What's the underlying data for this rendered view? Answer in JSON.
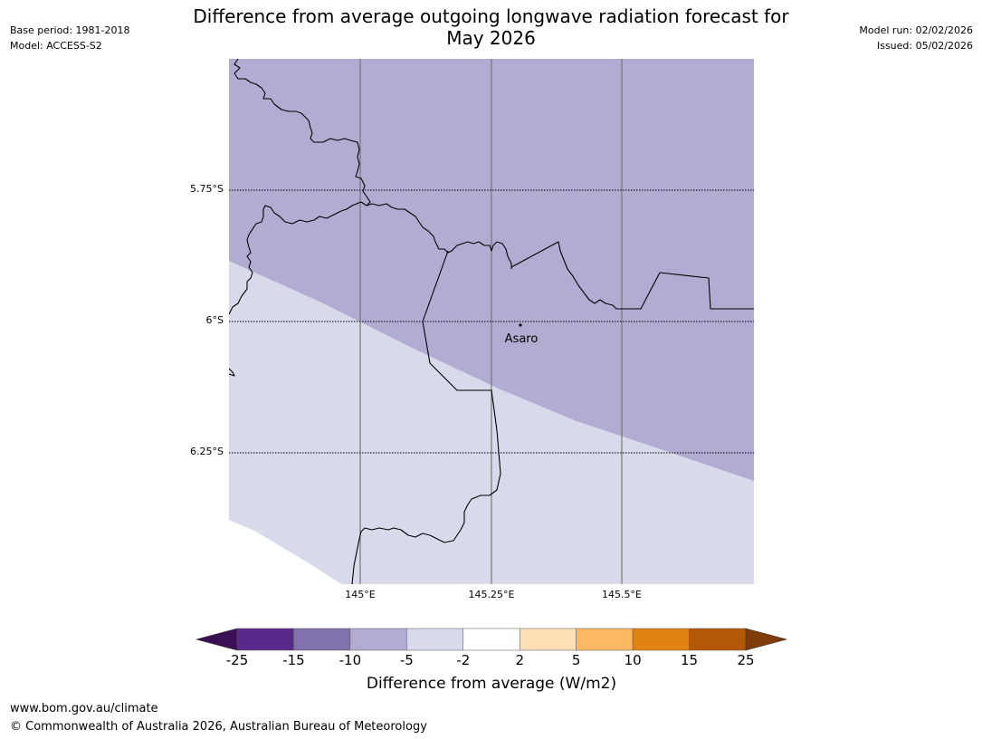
{
  "header": {
    "title_line1": "Difference from average outgoing longwave radiation forecast for",
    "title_line2": "May 2026",
    "base_period": "Base period: 1981-2018",
    "model": "Model: ACCESS-S2",
    "model_run": "Model run: 02/02/2026",
    "issued": "Issued: 05/02/2026"
  },
  "map": {
    "latitude_labels": [
      "5.75°S",
      "6°S",
      "6.25°S"
    ],
    "longitude_labels": [
      "145°E",
      "145.25°E",
      "145.5°E"
    ],
    "place": {
      "name": "Asaro",
      "lon": 145.3,
      "lat": -6.01
    },
    "extent": {
      "lon_min": 144.75,
      "lon_max": 145.75,
      "lat_min": -6.5,
      "lat_max": -5.5
    },
    "colors": {
      "dark_band": "#b2abd2",
      "light_band": "#d8d9ea",
      "no_data": "#ffffff"
    }
  },
  "colorbar": {
    "label": "Difference from average (W/m2)",
    "ticks": [
      "-25",
      "-15",
      "-10",
      "-5",
      "-2",
      "2",
      "5",
      "10",
      "15",
      "25"
    ],
    "colors": [
      "#5a2a8a",
      "#8272ac",
      "#b2abd2",
      "#d8d9ea",
      "#ffffff",
      "#fee0b6",
      "#fdb863",
      "#e08214",
      "#b35806"
    ],
    "under_color": "#3b0f56",
    "over_color": "#7f3b08"
  },
  "footer": {
    "url": "www.bom.gov.au/climate",
    "copyright": "© Commonwealth of Australia 2026, Australian Bureau of Meteorology"
  }
}
